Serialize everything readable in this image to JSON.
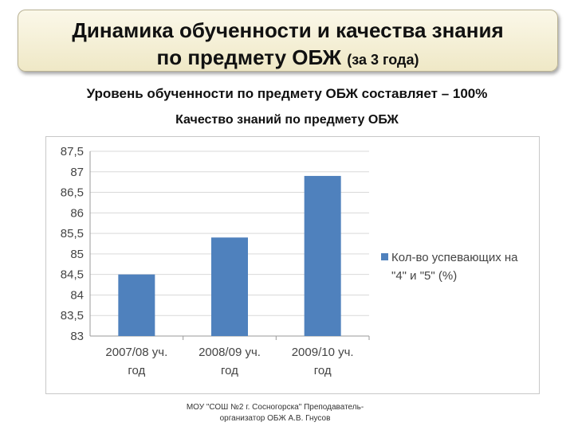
{
  "header": {
    "title_line1": "Динамика обученности и качества знания",
    "title_line2": "по предмету ОБЖ",
    "title_suffix": "(за 3 года)"
  },
  "level_text": "Уровень обученности по предмету ОБЖ составляет – 100%",
  "footer": {
    "line1": "МОУ \"СОШ №2 г. Сосногорска\" Преподаватель-",
    "line2": "организатор ОБЖ А.В. Гнусов"
  },
  "chart_data": {
    "type": "bar",
    "title": "Качество знаний по предмету ОБЖ",
    "categories": [
      [
        "2007/08 уч.",
        "год"
      ],
      [
        "2008/09 уч.",
        "год"
      ],
      [
        "2009/10 уч.",
        "год"
      ]
    ],
    "series": [
      {
        "name_lines": [
          "Кол-во успевающих на",
          "\"4\" и \"5\" (%)"
        ],
        "values": [
          84.5,
          85.4,
          86.9
        ],
        "color": "#4f81bd"
      }
    ],
    "ylim": [
      83,
      87.5
    ],
    "yticks": [
      "83",
      "83,5",
      "84",
      "84,5",
      "85",
      "85,5",
      "86",
      "86,5",
      "87",
      "87,5"
    ],
    "grid": true,
    "legend": "right"
  }
}
